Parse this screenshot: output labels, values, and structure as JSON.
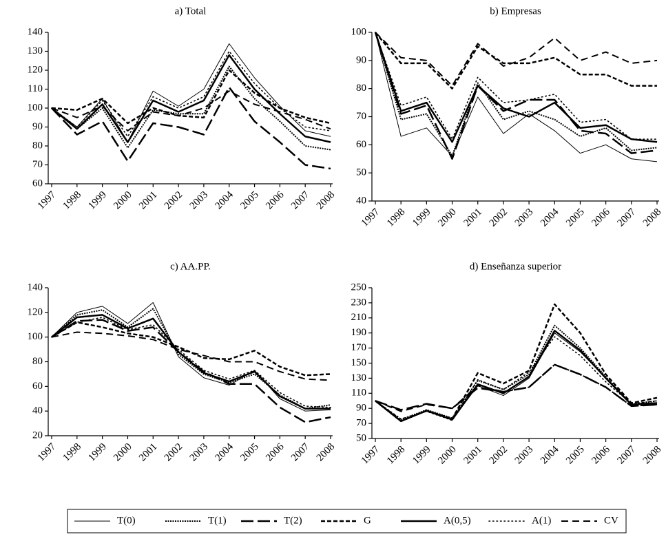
{
  "chart_data": [
    {
      "type": "line",
      "title": "a) Total",
      "categories": [
        "1997",
        "1998",
        "1999",
        "2000",
        "2001",
        "2002",
        "2003",
        "2004",
        "2005",
        "2006",
        "2007",
        "2008"
      ],
      "ylim": [
        60,
        140
      ],
      "yticks": [
        60,
        70,
        80,
        90,
        100,
        110,
        120,
        130,
        140
      ],
      "series": [
        {
          "name": "T(0)",
          "color": "#000000",
          "values": [
            100,
            90,
            105,
            82,
            109,
            101,
            110,
            134,
            116,
            101,
            88,
            85
          ]
        },
        {
          "name": "T(1)",
          "color": "#000000",
          "values": [
            100,
            89,
            100,
            79,
            99,
            97,
            97,
            122,
            105,
            93,
            80,
            78
          ]
        },
        {
          "name": "T(2)",
          "color": "#000000",
          "values": [
            100,
            86,
            93,
            72,
            92,
            90,
            86,
            111,
            93,
            82,
            70,
            68
          ]
        },
        {
          "name": "G",
          "color": "#000000",
          "values": [
            100,
            99,
            105,
            92,
            100,
            96,
            95,
            120,
            108,
            100,
            95,
            92
          ]
        },
        {
          "name": "A(0,5)",
          "color": "#000000",
          "values": [
            100,
            89,
            102,
            82,
            104,
            98,
            104,
            128,
            110,
            97,
            85,
            82
          ]
        },
        {
          "name": "A(1)",
          "color": "#000000",
          "values": [
            100,
            90,
            104,
            85,
            106,
            100,
            106,
            130,
            113,
            100,
            90,
            88
          ]
        },
        {
          "name": "CV",
          "color": "#000000",
          "values": [
            100,
            95,
            101,
            88,
            98,
            96,
            100,
            109,
            102,
            98,
            94,
            89
          ]
        }
      ]
    },
    {
      "type": "line",
      "title": "b) Empresas",
      "categories": [
        "1997",
        "1998",
        "1999",
        "2000",
        "2001",
        "2002",
        "2003",
        "2004",
        "2005",
        "2006",
        "2007",
        "2008"
      ],
      "ylim": [
        40,
        100
      ],
      "yticks": [
        40,
        50,
        60,
        70,
        80,
        90,
        100
      ],
      "series": [
        {
          "name": "T(0)",
          "color": "#000000",
          "values": [
            100,
            63,
            66,
            56,
            77,
            64,
            71,
            65,
            57,
            60,
            55,
            54
          ]
        },
        {
          "name": "T(1)",
          "color": "#000000",
          "values": [
            100,
            69,
            71,
            56,
            82,
            69,
            72,
            69,
            63,
            66,
            58,
            59
          ]
        },
        {
          "name": "T(2)",
          "color": "#000000",
          "values": [
            100,
            71,
            74,
            55,
            81,
            72,
            76,
            76,
            65,
            64,
            57,
            58
          ]
        },
        {
          "name": "G",
          "color": "#000000",
          "values": [
            100,
            89,
            89,
            80,
            95,
            89,
            89,
            91,
            85,
            85,
            81,
            81
          ]
        },
        {
          "name": "A(0,5)",
          "color": "#000000",
          "values": [
            100,
            72,
            75,
            61,
            81,
            73,
            70,
            75,
            66,
            67,
            62,
            61
          ]
        },
        {
          "name": "A(1)",
          "color": "#000000",
          "values": [
            100,
            74,
            77,
            62,
            84,
            75,
            76,
            78,
            68,
            69,
            62,
            62
          ]
        },
        {
          "name": "CV",
          "color": "#000000",
          "values": [
            100,
            91,
            90,
            81,
            96,
            88,
            91,
            98,
            90,
            93,
            89,
            90
          ]
        }
      ]
    },
    {
      "type": "line",
      "title": "c) AA.PP.",
      "categories": [
        "1997",
        "1998",
        "1999",
        "2000",
        "2001",
        "2002",
        "2003",
        "2004",
        "2005",
        "2006",
        "2007",
        "2008"
      ],
      "ylim": [
        20,
        140
      ],
      "yticks": [
        20,
        40,
        60,
        80,
        100,
        120,
        140
      ],
      "series": [
        {
          "name": "T(0)",
          "color": "#000000",
          "values": [
            100,
            120,
            125,
            111,
            128,
            84,
            67,
            61,
            73,
            50,
            40,
            41
          ]
        },
        {
          "name": "T(1)",
          "color": "#000000",
          "values": [
            100,
            118,
            122,
            108,
            123,
            86,
            70,
            63,
            70,
            53,
            42,
            45
          ]
        },
        {
          "name": "T(2)",
          "color": "#000000",
          "values": [
            100,
            113,
            114,
            105,
            108,
            88,
            72,
            62,
            62,
            43,
            31,
            35
          ]
        },
        {
          "name": "G",
          "color": "#000000",
          "values": [
            100,
            112,
            108,
            103,
            100,
            92,
            83,
            82,
            89,
            76,
            69,
            70
          ]
        },
        {
          "name": "A(0,5)",
          "color": "#000000",
          "values": [
            100,
            116,
            118,
            107,
            115,
            88,
            71,
            64,
            72,
            52,
            42,
            42
          ]
        },
        {
          "name": "A(1)",
          "color": "#000000",
          "values": [
            100,
            112,
            116,
            106,
            110,
            90,
            73,
            66,
            73,
            55,
            44,
            43
          ]
        },
        {
          "name": "CV",
          "color": "#000000",
          "values": [
            100,
            104,
            103,
            101,
            98,
            90,
            85,
            80,
            80,
            72,
            66,
            65
          ]
        }
      ]
    },
    {
      "type": "line",
      "title": "d) Enseñanza superior",
      "categories": [
        "1997",
        "1998",
        "1999",
        "2000",
        "2001",
        "2002",
        "2003",
        "2004",
        "2005",
        "2006",
        "2007",
        "2008"
      ],
      "ylim": [
        50,
        250
      ],
      "yticks": [
        50,
        70,
        90,
        110,
        130,
        150,
        170,
        190,
        210,
        230,
        250
      ],
      "series": [
        {
          "name": "T(0)",
          "color": "#000000",
          "values": [
            100,
            73,
            86,
            75,
            120,
            107,
            130,
            190,
            165,
            130,
            95,
            97
          ]
        },
        {
          "name": "T(1)",
          "color": "#000000",
          "values": [
            100,
            75,
            88,
            77,
            127,
            115,
            135,
            200,
            170,
            132,
            95,
            100
          ]
        },
        {
          "name": "T(2)",
          "color": "#000000",
          "values": [
            100,
            88,
            96,
            90,
            117,
            112,
            118,
            148,
            135,
            118,
            93,
            95
          ]
        },
        {
          "name": "G",
          "color": "#000000",
          "values": [
            100,
            73,
            87,
            76,
            137,
            123,
            140,
            228,
            190,
            135,
            97,
            104
          ]
        },
        {
          "name": "A(0,5)",
          "color": "#000000",
          "values": [
            100,
            73,
            87,
            75,
            122,
            110,
            132,
            193,
            167,
            130,
            95,
            97
          ]
        },
        {
          "name": "A(1)",
          "color": "#000000",
          "values": [
            100,
            76,
            86,
            74,
            128,
            115,
            138,
            185,
            160,
            125,
            96,
            100
          ]
        },
        {
          "name": "CV",
          "color": "#000000",
          "values": [
            100,
            86,
            95,
            90,
            120,
            112,
            118,
            148,
            135,
            118,
            93,
            95
          ]
        }
      ]
    }
  ]
}
